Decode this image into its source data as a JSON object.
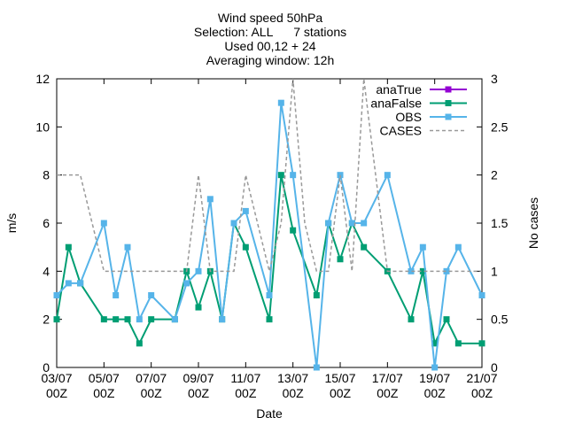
{
  "chart_data": {
    "type": "line",
    "title": [
      "Wind speed 50hPa",
      "Selection: ALL      7 stations",
      "Used 00,12 + 24",
      "Averaging window: 12h"
    ],
    "xlabel": "Date",
    "ylabel": "m/s",
    "y2label": "No cases",
    "xlim": [
      3,
      21
    ],
    "xticks": [
      {
        "value": 3,
        "label": "03/07 00Z"
      },
      {
        "value": 5,
        "label": "05/07 00Z"
      },
      {
        "value": 7,
        "label": "07/07 00Z"
      },
      {
        "value": 9,
        "label": "09/07 00Z"
      },
      {
        "value": 11,
        "label": "11/07 00Z"
      },
      {
        "value": 13,
        "label": "13/07 00Z"
      },
      {
        "value": 15,
        "label": "15/07 00Z"
      },
      {
        "value": 17,
        "label": "17/07 00Z"
      },
      {
        "value": 19,
        "label": "19/07 00Z"
      },
      {
        "value": 21,
        "label": "21/07 00Z"
      }
    ],
    "ylim": [
      0,
      12
    ],
    "yticks": [
      0,
      2,
      4,
      6,
      8,
      10,
      12
    ],
    "y2lim": [
      0,
      3
    ],
    "y2ticks": [
      0,
      0.5,
      1,
      1.5,
      2,
      2.5,
      3
    ],
    "grid": false,
    "legend": "top-right",
    "series": [
      {
        "name": "anaTrue",
        "color": "#9400d3",
        "x": [],
        "values": []
      },
      {
        "name": "anaFalse",
        "color": "#009e73",
        "x": [
          3,
          3.5,
          4,
          5,
          5.5,
          6,
          6.5,
          7,
          8,
          8.5,
          9,
          9.5,
          10,
          10.5,
          11,
          12,
          12.5,
          13,
          14,
          14.5,
          15,
          15.5,
          16,
          17,
          18,
          18.5,
          19,
          19.5,
          20,
          21
        ],
        "values": [
          2,
          5,
          3.5,
          2,
          2,
          2,
          1,
          2,
          2,
          4,
          2.5,
          4,
          2,
          6,
          5,
          2,
          8,
          5.7,
          3,
          6,
          4.5,
          6,
          5,
          4,
          2,
          4,
          1,
          2,
          1,
          1
        ]
      },
      {
        "name": "OBS",
        "color": "#56b4e9",
        "x": [
          3,
          3.5,
          4,
          5,
          5.5,
          6,
          6.5,
          7,
          8,
          8.5,
          9,
          9.5,
          10,
          10.5,
          11,
          12,
          12.5,
          13,
          14,
          14.5,
          15,
          15.5,
          16,
          17,
          18,
          18.5,
          19,
          19.5,
          20,
          21
        ],
        "values": [
          3,
          3.5,
          3.5,
          6,
          3,
          5,
          2,
          3,
          2,
          3.5,
          4,
          7,
          2,
          6,
          6.5,
          3,
          11,
          8,
          0,
          6,
          8,
          6,
          6,
          8,
          4,
          5,
          0,
          4,
          5,
          3
        ]
      },
      {
        "name": "CASES",
        "color": "#999999",
        "axis": "y2",
        "dashed": true,
        "x": [
          3,
          3.5,
          4,
          4.5,
          5,
          5.5,
          6,
          6.5,
          7,
          7.5,
          8,
          8.5,
          9,
          9.5,
          10,
          10.5,
          11,
          11.5,
          12,
          12.5,
          13,
          13.5,
          14,
          14.5,
          15,
          15.5,
          16,
          16.5,
          17,
          17.5,
          18,
          18.5,
          19,
          19.5,
          20,
          20.5,
          21
        ],
        "values": [
          2,
          2,
          2,
          1.5,
          1,
          1,
          1,
          1,
          1,
          1,
          1,
          1,
          2,
          1,
          1,
          1,
          2,
          1.5,
          1,
          1.5,
          3,
          1.5,
          1,
          1,
          2,
          1,
          3,
          2,
          1,
          1,
          1,
          1,
          1,
          1,
          1,
          1,
          1
        ]
      }
    ]
  }
}
